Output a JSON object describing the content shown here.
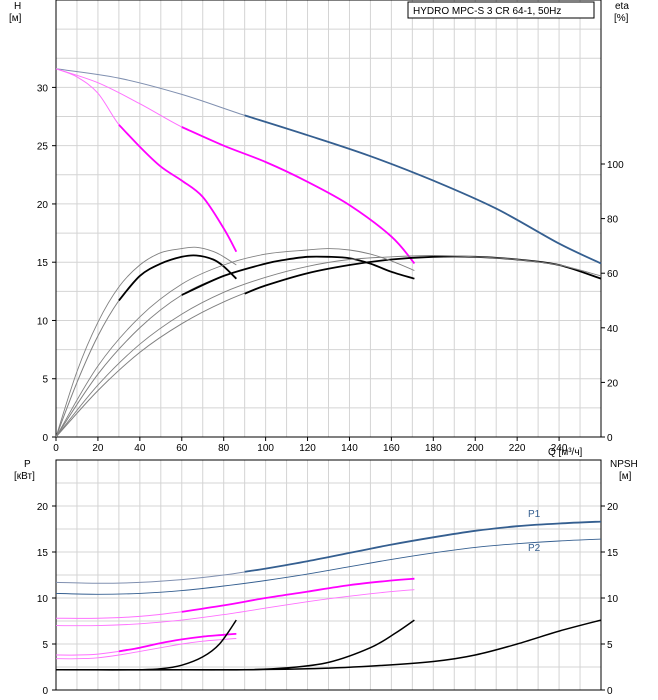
{
  "legend": {
    "title": "HYDRO MPC-S 3 CR 64-1, 50Hz"
  },
  "colors": {
    "dark_blue": "#355f90",
    "magenta": "#ff00ff",
    "light_magenta": "#ff70ff",
    "black": "#000000",
    "gray": "#808080",
    "grid": "#d4d4d4"
  },
  "chart_data": [
    {
      "type": "line",
      "title": "",
      "x_label": "Q [м³/ч]",
      "y_label_left": [
        "H",
        "[м]"
      ],
      "y_label_right": [
        "eta",
        "[%]"
      ],
      "x_range": [
        0,
        260
      ],
      "y_range_left": [
        0,
        37.5
      ],
      "y_range_right": [
        0,
        100
      ],
      "grid": true,
      "x_ticks": [
        "0",
        "20",
        "40",
        "60",
        "80",
        "100",
        "120",
        "140",
        "160",
        "180",
        "200",
        "220",
        "240"
      ],
      "y_ticks_left": [
        "0",
        "5",
        "10",
        "15",
        "20",
        "25",
        "30"
      ],
      "y_ticks_right": [
        "0",
        "20",
        "40",
        "60",
        "80",
        "100"
      ],
      "series": [
        {
          "group": "head",
          "variant": "envelope",
          "points": [
            [
              0,
              31.6
            ],
            [
              30,
              30.8
            ],
            [
              60,
              29.4
            ],
            [
              90,
              27.6
            ],
            [
              120,
              25.9
            ],
            [
              150,
              24.1
            ],
            [
              180,
              22.0
            ],
            [
              210,
              19.6
            ],
            [
              240,
              16.6
            ],
            [
              260,
              14.9
            ]
          ]
        },
        {
          "group": "head",
          "variant": "curve_3",
          "points": [
            [
              0,
              31.6
            ],
            [
              30,
              30.8
            ],
            [
              60,
              29.4
            ],
            [
              90,
              27.6
            ],
            [
              120,
              25.9
            ],
            [
              150,
              24.1
            ],
            [
              180,
              22.0
            ],
            [
              210,
              19.6
            ],
            [
              240,
              16.6
            ],
            [
              260,
              14.9
            ]
          ],
          "highlight_from": 90
        },
        {
          "group": "head",
          "variant": "curve_2",
          "points": [
            [
              0,
              31.6
            ],
            [
              20,
              30.4
            ],
            [
              40,
              28.6
            ],
            [
              60,
              26.6
            ],
            [
              80,
              25.0
            ],
            [
              100,
              23.6
            ],
            [
              120,
              21.9
            ],
            [
              140,
              19.9
            ],
            [
              160,
              17.2
            ],
            [
              171,
              14.9
            ]
          ],
          "highlight_from": 60
        },
        {
          "group": "head",
          "variant": "curve_1",
          "points": [
            [
              0,
              31.6
            ],
            [
              10,
              30.9
            ],
            [
              20,
              29.5
            ],
            [
              30,
              26.8
            ],
            [
              40,
              24.9
            ],
            [
              50,
              23.2
            ],
            [
              60,
              22.0
            ],
            [
              70,
              20.6
            ],
            [
              80,
              17.9
            ],
            [
              86,
              15.9
            ]
          ],
          "highlight_from": 30
        },
        {
          "group": "eta",
          "variant": "curve_3",
          "points": [
            [
              0,
              0
            ],
            [
              20,
              17
            ],
            [
              40,
              31
            ],
            [
              60,
              41.5
            ],
            [
              80,
              49.5
            ],
            [
              100,
              55.5
            ],
            [
              120,
              60
            ],
            [
              140,
              63
            ],
            [
              160,
              65
            ],
            [
              180,
              66
            ],
            [
              200,
              66
            ],
            [
              220,
              65
            ],
            [
              240,
              63
            ],
            [
              260,
              58
            ]
          ],
          "highlight_from": 90
        },
        {
          "group": "eta",
          "variant": "curve_2",
          "points": [
            [
              0,
              0
            ],
            [
              20,
              23
            ],
            [
              40,
              40
            ],
            [
              60,
              52
            ],
            [
              80,
              59
            ],
            [
              100,
              63.5
            ],
            [
              110,
              65
            ],
            [
              120,
              66
            ],
            [
              130,
              66
            ],
            [
              140,
              65.5
            ],
            [
              150,
              63.5
            ],
            [
              160,
              60.5
            ],
            [
              171,
              58
            ]
          ],
          "highlight_from": 60
        },
        {
          "group": "eta",
          "variant": "curve_1",
          "points": [
            [
              0,
              0
            ],
            [
              10,
              20
            ],
            [
              20,
              37
            ],
            [
              30,
              50
            ],
            [
              40,
              59
            ],
            [
              50,
              63.5
            ],
            [
              60,
              66
            ],
            [
              67,
              66.5
            ],
            [
              75,
              65
            ],
            [
              80,
              62.5
            ],
            [
              86,
              58
            ]
          ],
          "highlight_from": 30
        },
        {
          "group": "eta_thin",
          "variant": "curve_3",
          "points": [
            [
              0,
              0
            ],
            [
              20,
              19
            ],
            [
              40,
              34
            ],
            [
              60,
              45
            ],
            [
              80,
              53
            ],
            [
              100,
              58.5
            ],
            [
              120,
              62.5
            ],
            [
              140,
              65
            ],
            [
              160,
              66
            ],
            [
              180,
              66.5
            ],
            [
              200,
              66
            ],
            [
              220,
              65
            ],
            [
              240,
              63
            ],
            [
              260,
              59
            ]
          ]
        },
        {
          "group": "eta_thin",
          "variant": "curve_2",
          "points": [
            [
              0,
              0
            ],
            [
              20,
              26
            ],
            [
              40,
              44
            ],
            [
              60,
              56
            ],
            [
              80,
              63
            ],
            [
              100,
              67
            ],
            [
              120,
              68.5
            ],
            [
              130,
              69
            ],
            [
              140,
              68.5
            ],
            [
              150,
              67
            ],
            [
              160,
              64.5
            ],
            [
              171,
              61
            ]
          ]
        },
        {
          "group": "eta_thin",
          "variant": "curve_1",
          "points": [
            [
              0,
              0
            ],
            [
              10,
              24
            ],
            [
              20,
              42
            ],
            [
              30,
              55
            ],
            [
              40,
              63
            ],
            [
              50,
              67.5
            ],
            [
              60,
              69
            ],
            [
              67,
              69.5
            ],
            [
              75,
              68
            ],
            [
              80,
              66
            ],
            [
              86,
              63
            ]
          ]
        }
      ]
    },
    {
      "type": "line",
      "title": "",
      "x_label": "",
      "y_label_left": [
        "P",
        "[кВт]"
      ],
      "y_label_right": [
        "NPSH",
        "[м]"
      ],
      "x_range": [
        0,
        260
      ],
      "y_range_left": [
        0,
        25
      ],
      "y_range_right": [
        0,
        25
      ],
      "grid": true,
      "y_ticks_left": [
        "0",
        "5",
        "10",
        "15",
        "20"
      ],
      "y_ticks_right": [
        "0",
        "5",
        "10",
        "15",
        "20"
      ],
      "series": [
        {
          "name": "P1",
          "group": "power",
          "variant": "p1_3",
          "points": [
            [
              0,
              11.7
            ],
            [
              20,
              11.6
            ],
            [
              40,
              11.7
            ],
            [
              60,
              12.0
            ],
            [
              80,
              12.5
            ],
            [
              100,
              13.2
            ],
            [
              120,
              14.0
            ],
            [
              140,
              14.9
            ],
            [
              160,
              15.8
            ],
            [
              180,
              16.6
            ],
            [
              200,
              17.3
            ],
            [
              220,
              17.8
            ],
            [
              240,
              18.1
            ],
            [
              260,
              18.3
            ]
          ],
          "highlight_from": 90
        },
        {
          "name": "P2",
          "group": "power",
          "variant": "p2_3",
          "points": [
            [
              0,
              10.5
            ],
            [
              20,
              10.4
            ],
            [
              40,
              10.5
            ],
            [
              60,
              10.8
            ],
            [
              80,
              11.3
            ],
            [
              100,
              11.9
            ],
            [
              120,
              12.6
            ],
            [
              140,
              13.4
            ],
            [
              160,
              14.2
            ],
            [
              180,
              14.9
            ],
            [
              200,
              15.5
            ],
            [
              220,
              15.9
            ],
            [
              240,
              16.2
            ],
            [
              260,
              16.4
            ]
          ]
        },
        {
          "group": "power",
          "variant": "p1_2",
          "points": [
            [
              0,
              7.8
            ],
            [
              20,
              7.8
            ],
            [
              40,
              8.0
            ],
            [
              60,
              8.5
            ],
            [
              80,
              9.2
            ],
            [
              100,
              10.0
            ],
            [
              120,
              10.7
            ],
            [
              140,
              11.4
            ],
            [
              160,
              11.9
            ],
            [
              171,
              12.1
            ]
          ],
          "highlight_from": 60
        },
        {
          "group": "power",
          "variant": "p2_2",
          "points": [
            [
              0,
              7.0
            ],
            [
              20,
              7.0
            ],
            [
              40,
              7.2
            ],
            [
              60,
              7.6
            ],
            [
              80,
              8.2
            ],
            [
              100,
              8.9
            ],
            [
              120,
              9.6
            ],
            [
              140,
              10.2
            ],
            [
              160,
              10.7
            ],
            [
              171,
              10.9
            ]
          ]
        },
        {
          "group": "power",
          "variant": "p1_1",
          "points": [
            [
              0,
              3.8
            ],
            [
              10,
              3.8
            ],
            [
              20,
              3.9
            ],
            [
              30,
              4.2
            ],
            [
              40,
              4.6
            ],
            [
              50,
              5.1
            ],
            [
              60,
              5.5
            ],
            [
              70,
              5.8
            ],
            [
              80,
              6.0
            ],
            [
              86,
              6.1
            ]
          ],
          "highlight_from": 30
        },
        {
          "group": "power",
          "variant": "p2_1",
          "points": [
            [
              0,
              3.4
            ],
            [
              10,
              3.4
            ],
            [
              20,
              3.5
            ],
            [
              30,
              3.8
            ],
            [
              40,
              4.2
            ],
            [
              50,
              4.6
            ],
            [
              60,
              5.0
            ],
            [
              70,
              5.3
            ],
            [
              80,
              5.5
            ],
            [
              86,
              5.6
            ]
          ]
        },
        {
          "group": "npsh",
          "variant": "npsh_1",
          "points": [
            [
              0,
              2.2
            ],
            [
              20,
              2.2
            ],
            [
              40,
              2.2
            ],
            [
              50,
              2.3
            ],
            [
              60,
              2.7
            ],
            [
              70,
              3.6
            ],
            [
              78,
              5.0
            ],
            [
              86,
              7.6
            ]
          ]
        },
        {
          "group": "npsh",
          "variant": "npsh_2",
          "points": [
            [
              0,
              2.2
            ],
            [
              60,
              2.2
            ],
            [
              90,
              2.2
            ],
            [
              110,
              2.4
            ],
            [
              130,
              3.0
            ],
            [
              150,
              4.6
            ],
            [
              162,
              6.2
            ],
            [
              171,
              7.6
            ]
          ]
        },
        {
          "group": "npsh",
          "variant": "npsh_3",
          "points": [
            [
              0,
              2.2
            ],
            [
              80,
              2.2
            ],
            [
              120,
              2.3
            ],
            [
              150,
              2.6
            ],
            [
              180,
              3.1
            ],
            [
              200,
              3.8
            ],
            [
              220,
              5.0
            ],
            [
              240,
              6.4
            ],
            [
              260,
              7.6
            ]
          ]
        }
      ]
    }
  ]
}
